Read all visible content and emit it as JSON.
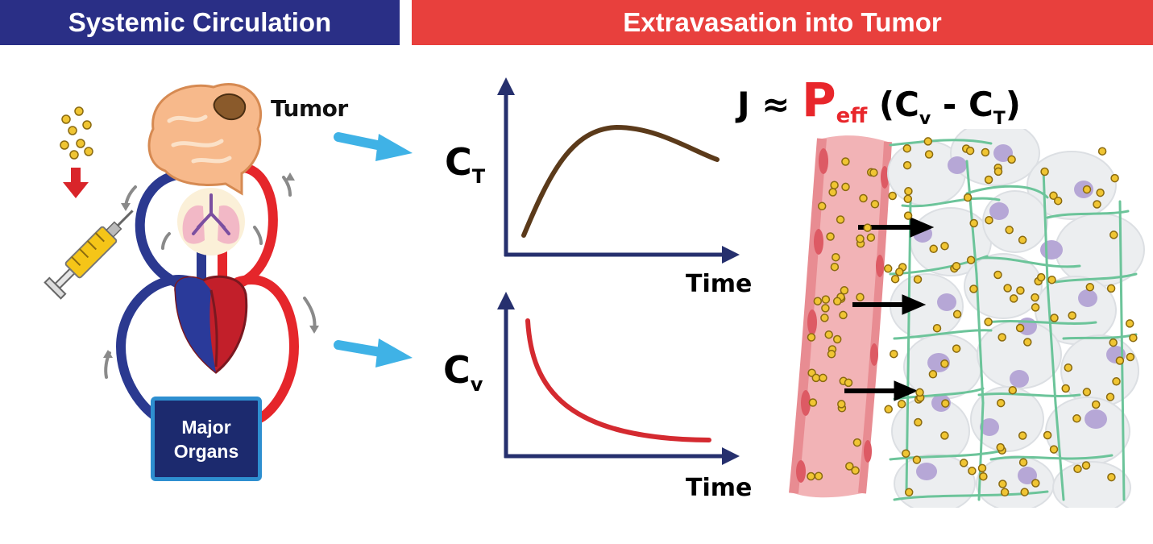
{
  "banners": {
    "left": "Systemic Circulation",
    "right": "Extravasation into Tumor"
  },
  "circulation": {
    "tumor_label": "Tumor",
    "organs_line1": "Major",
    "organs_line2": "Organs"
  },
  "graphs": {
    "tumor": {
      "var": "C",
      "sub": "T",
      "xlabel": "Time"
    },
    "vascular": {
      "var": "C",
      "sub": "v",
      "xlabel": "Time"
    }
  },
  "equation": {
    "lhs": "J ≈ ",
    "p": "P",
    "p_sub": "eff",
    "open": " (C",
    "cv_sub": "v",
    "minus": " - C",
    "ct_sub": "T",
    "close": ")"
  },
  "colors": {
    "banner_left": "#2a2f86",
    "banner_right": "#e8403d",
    "arterial": "#e5262b",
    "venous": "#2b3990",
    "axis": "#26306e",
    "tumor_curve": "#5b3a1a",
    "vascular_curve": "#d42a30",
    "flow_arrow": "#3fb2e6",
    "nanoparticle": "#f0c533",
    "ecm_fiber": "#6cc49a",
    "cell_nucleus": "#b6a7d6"
  }
}
